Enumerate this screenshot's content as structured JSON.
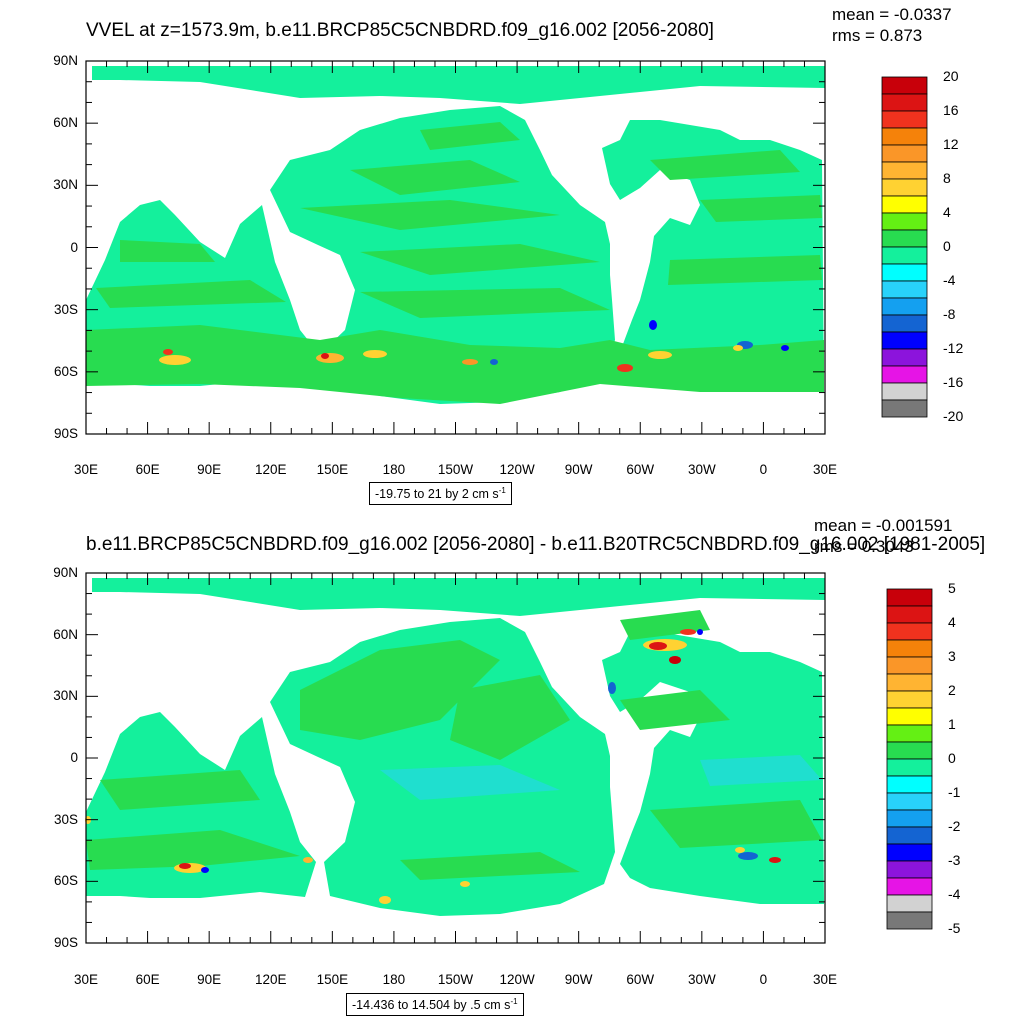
{
  "panels": [
    {
      "title": "VVEL at z=1573.9m, b.e11.BRCP85C5CNBDRD.f09_g16.002 [2056-2080]",
      "stats": {
        "mean": "mean = -0.0337",
        "rms": "rms = 0.873"
      },
      "y_ticks": [
        "90N",
        "60N",
        "30N",
        "0",
        "30S",
        "60S",
        "90S"
      ],
      "x_ticks": [
        "30E",
        "60E",
        "90E",
        "120E",
        "150E",
        "180",
        "150W",
        "120W",
        "90W",
        "60W",
        "30W",
        "0",
        "30E"
      ],
      "info": {
        "text": "-19.75 to 21 by 2 cm s",
        "sup": "-1"
      },
      "colorbar_labels": [
        "20",
        "16",
        "12",
        "8",
        "4",
        "0",
        "-4",
        "-8",
        "-12",
        "-16",
        "-20"
      ]
    },
    {
      "title": "b.e11.BRCP85C5CNBDRD.f09_g16.002 [2056-2080] - b.e11.B20TRC5CNBDRD.f09_g16.002 [1981-2005]",
      "stats": {
        "mean": "mean = -0.001591",
        "rms": "rms = 0.3043"
      },
      "y_ticks": [
        "90N",
        "60N",
        "30N",
        "0",
        "30S",
        "60S",
        "90S"
      ],
      "x_ticks": [
        "30E",
        "60E",
        "90E",
        "120E",
        "150E",
        "180",
        "150W",
        "120W",
        "90W",
        "60W",
        "30W",
        "0",
        "30E"
      ],
      "info": {
        "text": "-14.436 to 14.504 by .5 cm s",
        "sup": "-1"
      },
      "colorbar_labels": [
        "5",
        "4",
        "3",
        "2",
        "1",
        "0",
        "-1",
        "-2",
        "-3",
        "-4",
        "-5"
      ]
    }
  ],
  "palette": [
    "#c8000a",
    "#dc1414",
    "#f0321e",
    "#f5820a",
    "#fa9628",
    "#ffb432",
    "#ffd232",
    "#ffff00",
    "#64f014",
    "#28dc50",
    "#14f09c",
    "#00ffff",
    "#28d2fa",
    "#14a0f0",
    "#1464d2",
    "#0000ff",
    "#8c14dc",
    "#e614e6",
    "#d2d2d2",
    "#787878"
  ],
  "colors": {
    "ocean_main": "#14f09c",
    "ocean_band": "#28dc50",
    "land": "#ffffff"
  }
}
